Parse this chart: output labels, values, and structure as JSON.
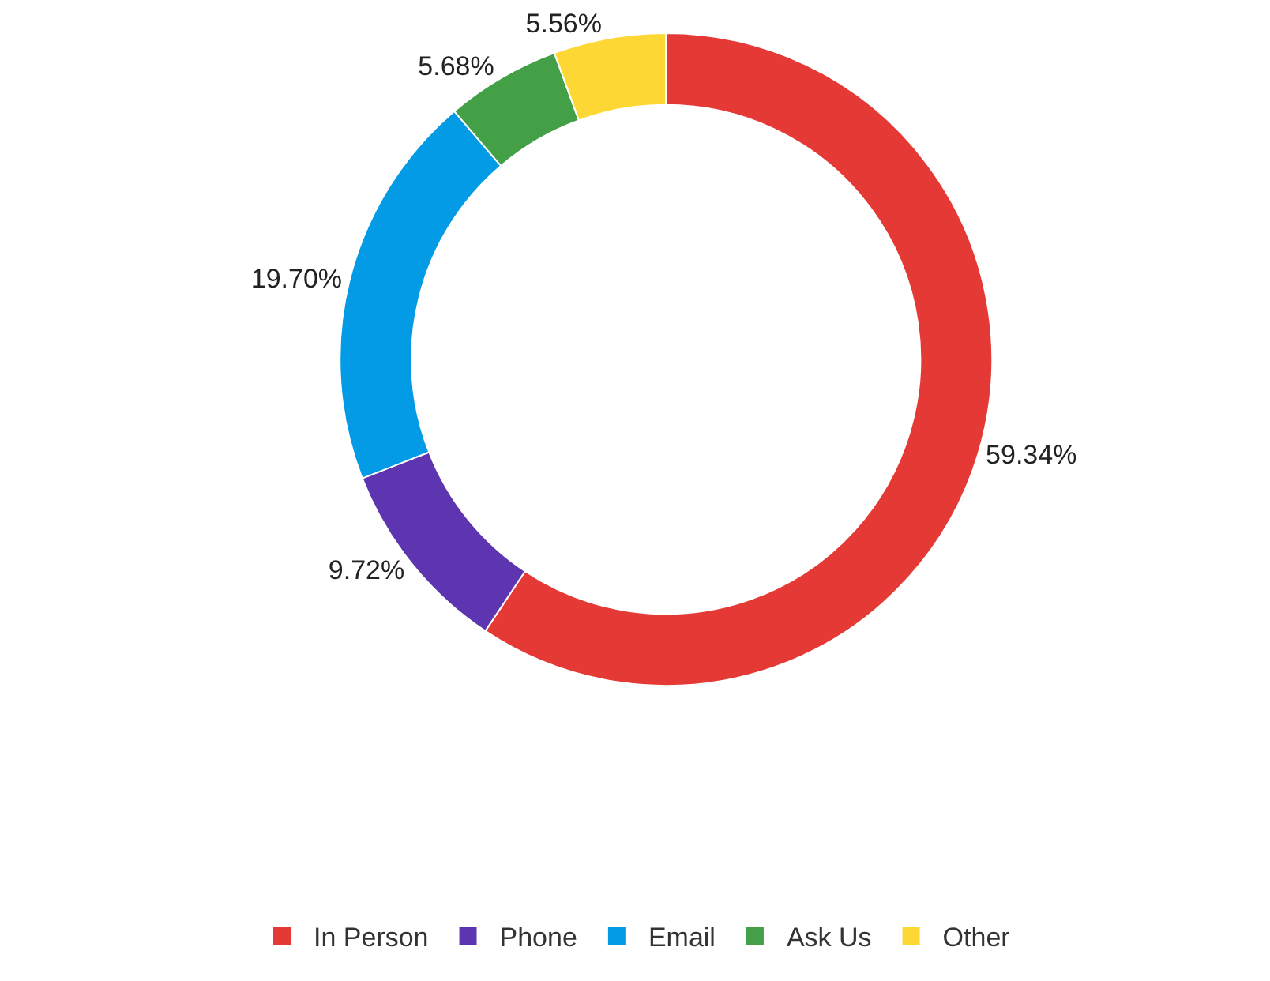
{
  "chart_data": {
    "type": "donut",
    "categories": [
      "In Person",
      "Phone",
      "Email",
      "Ask Us",
      "Other"
    ],
    "values": [
      59.34,
      9.72,
      19.7,
      5.68,
      5.56
    ],
    "value_labels": [
      "59.34%",
      "9.72%",
      "19.70%",
      "5.68%",
      "5.56%"
    ],
    "colors": [
      "#e53935",
      "#5e35b1",
      "#039be5",
      "#43a047",
      "#fdd835"
    ],
    "legend": "bottom"
  }
}
